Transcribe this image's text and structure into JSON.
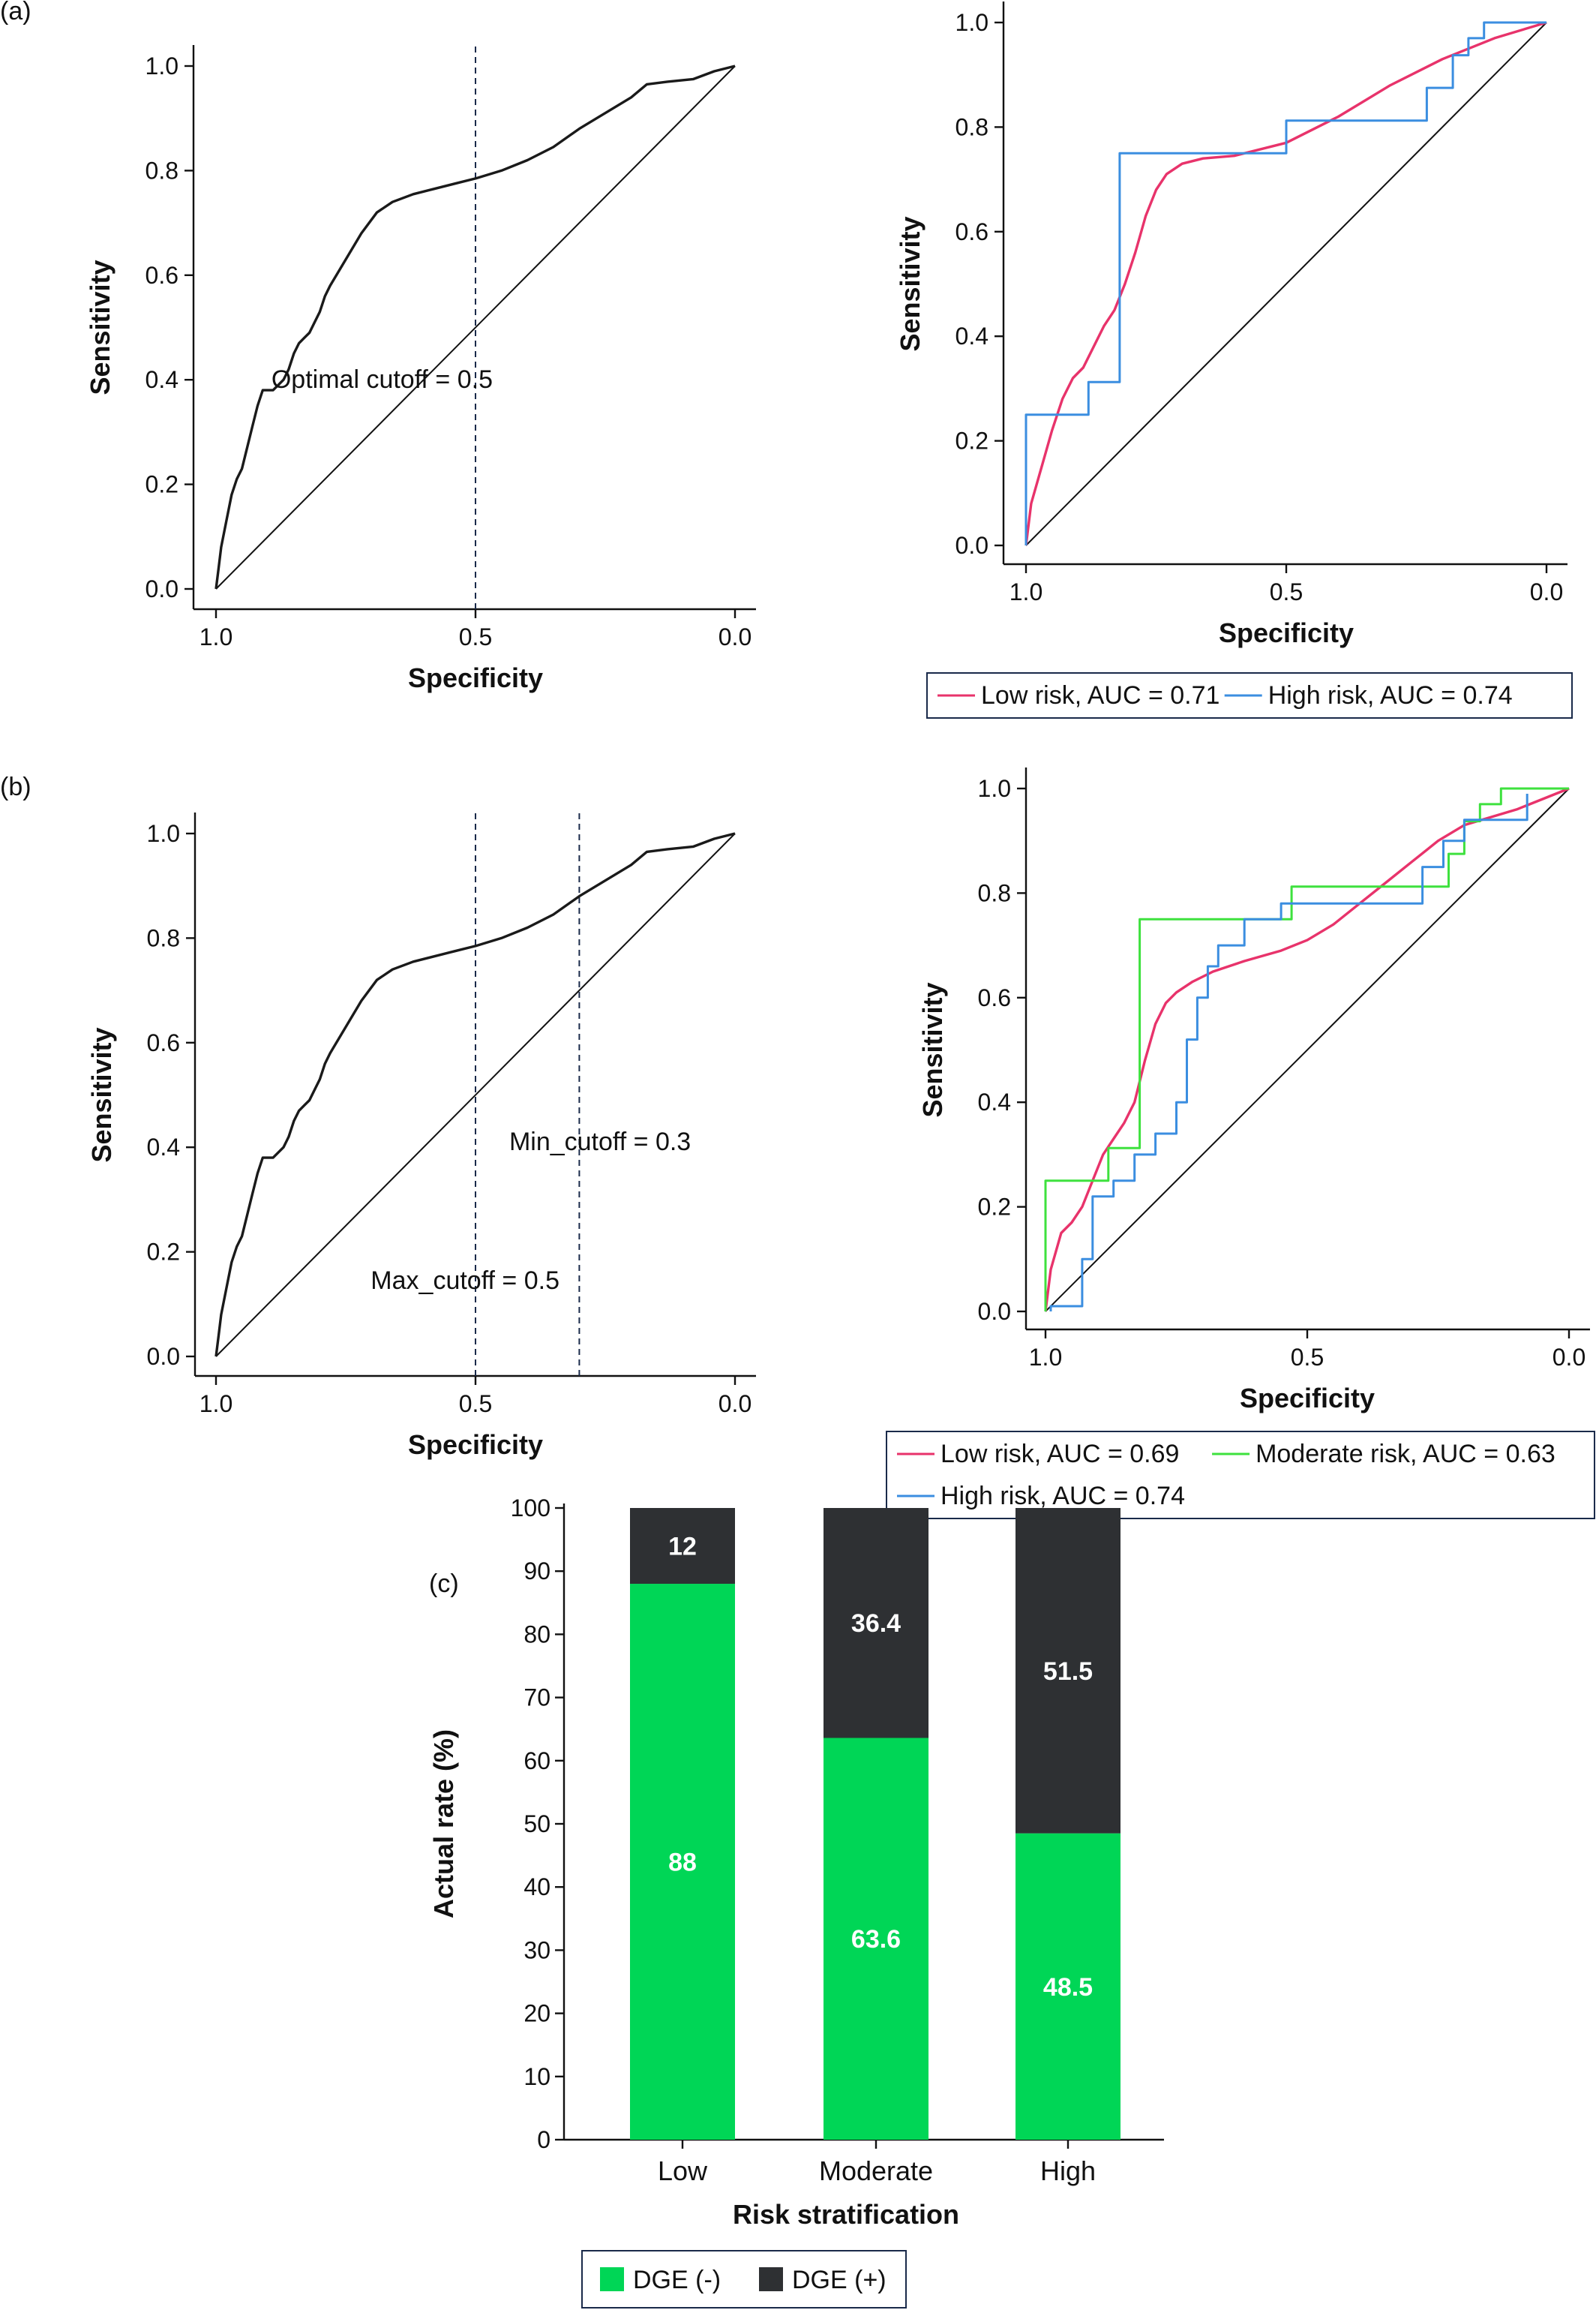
{
  "panel_labels": {
    "a": "(a)",
    "b": "(b)",
    "c": "(c)"
  },
  "chart_data": [
    {
      "id": "a-left",
      "type": "line",
      "xlabel": "Specificity",
      "ylabel": "Sensitivity",
      "xlim": [
        1.0,
        0.0
      ],
      "ylim": [
        0.0,
        1.0
      ],
      "x_ticks": [
        "1.0",
        "0.5",
        "0.0"
      ],
      "y_ticks": [
        "0.0",
        "0.2",
        "0.4",
        "0.6",
        "0.8",
        "1.0"
      ],
      "diagonal": true,
      "cutoff_lines": [
        0.5
      ],
      "annotations": [
        {
          "text": "Optimal cutoff = 0.5",
          "x": 0.68,
          "y": 0.4
        }
      ],
      "series": [
        {
          "color": "#1a1a1a",
          "x": [
            1.0,
            0.995,
            0.99,
            0.98,
            0.97,
            0.96,
            0.95,
            0.94,
            0.93,
            0.92,
            0.91,
            0.9,
            0.89,
            0.88,
            0.87,
            0.86,
            0.85,
            0.84,
            0.83,
            0.82,
            0.81,
            0.8,
            0.79,
            0.78,
            0.75,
            0.72,
            0.69,
            0.66,
            0.62,
            0.58,
            0.54,
            0.5,
            0.45,
            0.4,
            0.35,
            0.3,
            0.25,
            0.2,
            0.17,
            0.13,
            0.08,
            0.04,
            0.0
          ],
          "y": [
            0.0,
            0.04,
            0.08,
            0.13,
            0.18,
            0.21,
            0.23,
            0.27,
            0.31,
            0.35,
            0.38,
            0.38,
            0.38,
            0.39,
            0.4,
            0.42,
            0.45,
            0.47,
            0.48,
            0.49,
            0.51,
            0.53,
            0.56,
            0.58,
            0.63,
            0.68,
            0.72,
            0.74,
            0.755,
            0.765,
            0.775,
            0.785,
            0.8,
            0.82,
            0.845,
            0.88,
            0.91,
            0.94,
            0.965,
            0.97,
            0.975,
            0.99,
            1.0
          ]
        }
      ]
    },
    {
      "id": "a-right",
      "type": "line",
      "xlabel": "Specificity",
      "ylabel": "Sensitivity",
      "xlim": [
        1.0,
        0.0
      ],
      "ylim": [
        0.0,
        1.0
      ],
      "x_ticks": [
        "1.0",
        "0.5",
        "0.0"
      ],
      "y_ticks": [
        "0.0",
        "0.2",
        "0.4",
        "0.6",
        "0.8",
        "1.0"
      ],
      "diagonal": true,
      "series": [
        {
          "name": "Low risk, AUC = 0.71",
          "color": "#e8336b",
          "x": [
            1.0,
            0.99,
            0.97,
            0.95,
            0.93,
            0.91,
            0.89,
            0.87,
            0.85,
            0.83,
            0.81,
            0.79,
            0.77,
            0.75,
            0.73,
            0.7,
            0.66,
            0.6,
            0.5,
            0.4,
            0.3,
            0.2,
            0.1,
            0.0
          ],
          "y": [
            0.0,
            0.08,
            0.15,
            0.22,
            0.28,
            0.32,
            0.34,
            0.38,
            0.42,
            0.45,
            0.5,
            0.56,
            0.63,
            0.68,
            0.71,
            0.73,
            0.74,
            0.745,
            0.77,
            0.82,
            0.88,
            0.93,
            0.97,
            1.0
          ]
        },
        {
          "name": "High risk, AUC = 0.74",
          "color": "#3b8ee0",
          "step": true,
          "x": [
            1.0,
            1.0,
            0.88,
            0.88,
            0.82,
            0.82,
            0.5,
            0.5,
            0.23,
            0.23,
            0.18,
            0.18,
            0.15,
            0.15,
            0.12,
            0.12,
            0.0
          ],
          "y": [
            0.0,
            0.25,
            0.25,
            0.3125,
            0.3125,
            0.75,
            0.75,
            0.8125,
            0.8125,
            0.875,
            0.875,
            0.9375,
            0.9375,
            0.97,
            0.97,
            1.0,
            1.0
          ]
        }
      ]
    },
    {
      "id": "b-left",
      "type": "line",
      "xlabel": "Specificity",
      "ylabel": "Sensitivity",
      "xlim": [
        1.0,
        0.0
      ],
      "ylim": [
        0.0,
        1.0
      ],
      "x_ticks": [
        "1.0",
        "0.5",
        "0.0"
      ],
      "y_ticks": [
        "0.0",
        "0.2",
        "0.4",
        "0.6",
        "0.8",
        "1.0"
      ],
      "diagonal": true,
      "cutoff_lines": [
        0.5,
        0.3
      ],
      "annotations": [
        {
          "text": "Min_cutoff = 0.3",
          "x": 0.26,
          "y": 0.41
        },
        {
          "text": "Max_cutoff = 0.5",
          "x": 0.52,
          "y": 0.145
        }
      ],
      "series": [
        {
          "color": "#1a1a1a",
          "x": [
            1.0,
            0.995,
            0.99,
            0.98,
            0.97,
            0.96,
            0.95,
            0.94,
            0.93,
            0.92,
            0.91,
            0.9,
            0.89,
            0.88,
            0.87,
            0.86,
            0.85,
            0.84,
            0.83,
            0.82,
            0.81,
            0.8,
            0.79,
            0.78,
            0.75,
            0.72,
            0.69,
            0.66,
            0.62,
            0.58,
            0.54,
            0.5,
            0.45,
            0.4,
            0.35,
            0.3,
            0.25,
            0.2,
            0.17,
            0.13,
            0.08,
            0.04,
            0.0
          ],
          "y": [
            0.0,
            0.04,
            0.08,
            0.13,
            0.18,
            0.21,
            0.23,
            0.27,
            0.31,
            0.35,
            0.38,
            0.38,
            0.38,
            0.39,
            0.4,
            0.42,
            0.45,
            0.47,
            0.48,
            0.49,
            0.51,
            0.53,
            0.56,
            0.58,
            0.63,
            0.68,
            0.72,
            0.74,
            0.755,
            0.765,
            0.775,
            0.785,
            0.8,
            0.82,
            0.845,
            0.88,
            0.91,
            0.94,
            0.965,
            0.97,
            0.975,
            0.99,
            1.0
          ]
        }
      ]
    },
    {
      "id": "b-right",
      "type": "line",
      "xlabel": "Specificity",
      "ylabel": "Sensitivity",
      "xlim": [
        1.0,
        0.0
      ],
      "ylim": [
        0.0,
        1.0
      ],
      "x_ticks": [
        "1.0",
        "0.5",
        "0.0"
      ],
      "y_ticks": [
        "0.0",
        "0.2",
        "0.4",
        "0.6",
        "0.8",
        "1.0"
      ],
      "diagonal": true,
      "series": [
        {
          "name": "Low risk, AUC = 0.69",
          "color": "#e8336b",
          "x": [
            1.0,
            0.99,
            0.97,
            0.95,
            0.93,
            0.91,
            0.89,
            0.87,
            0.85,
            0.83,
            0.81,
            0.79,
            0.77,
            0.75,
            0.72,
            0.68,
            0.62,
            0.55,
            0.5,
            0.45,
            0.4,
            0.35,
            0.3,
            0.25,
            0.2,
            0.1,
            0.0
          ],
          "y": [
            0.0,
            0.08,
            0.15,
            0.17,
            0.2,
            0.25,
            0.3,
            0.33,
            0.36,
            0.4,
            0.48,
            0.55,
            0.59,
            0.61,
            0.63,
            0.65,
            0.67,
            0.69,
            0.71,
            0.74,
            0.78,
            0.82,
            0.86,
            0.9,
            0.93,
            0.96,
            1.0
          ]
        },
        {
          "name": "Moderate risk, AUC = 0.63",
          "color": "#3ee13e",
          "step": true,
          "x": [
            1.0,
            1.0,
            0.88,
            0.88,
            0.82,
            0.82,
            0.53,
            0.53,
            0.23,
            0.23,
            0.2,
            0.2,
            0.17,
            0.17,
            0.13,
            0.13,
            0.0
          ],
          "y": [
            0.0,
            0.25,
            0.25,
            0.3125,
            0.3125,
            0.75,
            0.75,
            0.8125,
            0.8125,
            0.875,
            0.875,
            0.9375,
            0.9375,
            0.97,
            0.97,
            1.0,
            1.0
          ]
        },
        {
          "name": "High risk, AUC = 0.74",
          "color": "#3b8ee0",
          "step": true,
          "x": [
            0.99,
            0.99,
            0.93,
            0.93,
            0.91,
            0.91,
            0.87,
            0.87,
            0.83,
            0.83,
            0.79,
            0.79,
            0.75,
            0.75,
            0.73,
            0.73,
            0.71,
            0.71,
            0.69,
            0.69,
            0.67,
            0.67,
            0.62,
            0.62,
            0.55,
            0.55,
            0.28,
            0.28,
            0.24,
            0.24,
            0.2,
            0.2,
            0.08,
            0.08
          ],
          "y": [
            0.0,
            0.01,
            0.01,
            0.1,
            0.1,
            0.22,
            0.22,
            0.25,
            0.25,
            0.3,
            0.3,
            0.34,
            0.34,
            0.4,
            0.4,
            0.52,
            0.52,
            0.6,
            0.6,
            0.66,
            0.66,
            0.7,
            0.7,
            0.75,
            0.75,
            0.78,
            0.78,
            0.85,
            0.85,
            0.9,
            0.9,
            0.94,
            0.94,
            0.99
          ]
        }
      ]
    },
    {
      "id": "c",
      "type": "bar",
      "stacked": true,
      "categories": [
        "Low",
        "Moderate",
        "High"
      ],
      "xlabel": "Risk stratification",
      "ylabel": "Actual rate (%)",
      "ylim": [
        0,
        100
      ],
      "y_ticks": [
        "0",
        "10",
        "20",
        "30",
        "40",
        "50",
        "60",
        "70",
        "80",
        "90",
        "100"
      ],
      "series": [
        {
          "name": "DGE (-)",
          "color": "#00d656",
          "values": [
            88,
            63.6,
            48.5
          ],
          "labels": [
            "88",
            "63.6",
            "48.5"
          ]
        },
        {
          "name": "DGE (+)",
          "color": "#2e3033",
          "values": [
            12,
            36.4,
            51.5
          ],
          "labels": [
            "12",
            "36.4",
            "51.5"
          ]
        }
      ]
    }
  ]
}
